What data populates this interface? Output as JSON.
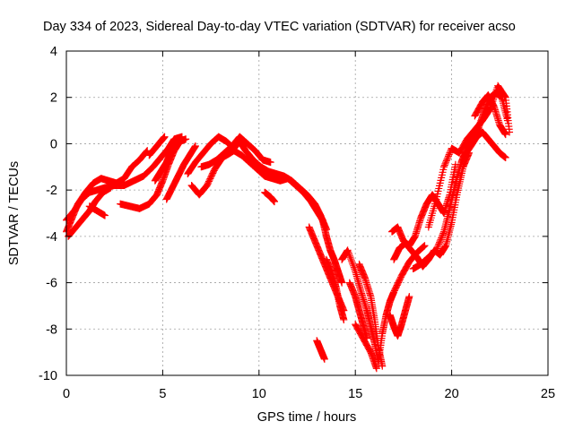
{
  "chart_data": {
    "type": "scatter",
    "title": "Day 334 of 2023, Sidereal Day-to-day VTEC variation (SDTVAR) for receiver acso",
    "xlabel": "GPS time / hours",
    "ylabel": "SDTVAR / TECUs",
    "xlim": [
      0,
      25
    ],
    "ylim": [
      -10,
      4
    ],
    "xticks": [
      0,
      5,
      10,
      15,
      20,
      25
    ],
    "yticks": [
      -10,
      -8,
      -6,
      -4,
      -2,
      0,
      2,
      4
    ],
    "grid": true,
    "marker": "+",
    "color": "#ff0000",
    "series": [
      {
        "name": "SDTVAR",
        "tracks": [
          [
            [
              0.0,
              -3.8
            ],
            [
              0.3,
              -3.2
            ],
            [
              0.6,
              -2.6
            ],
            [
              1.0,
              -2.1
            ],
            [
              1.4,
              -1.7
            ],
            [
              1.8,
              -1.5
            ],
            [
              2.2,
              -1.6
            ],
            [
              2.6,
              -1.7
            ],
            [
              3.0,
              -1.5
            ],
            [
              3.4,
              -1.0
            ],
            [
              3.8,
              -0.7
            ],
            [
              4.2,
              -0.3
            ]
          ],
          [
            [
              0.0,
              -3.3
            ],
            [
              0.4,
              -2.9
            ],
            [
              0.8,
              -2.4
            ],
            [
              1.2,
              -2.1
            ],
            [
              1.6,
              -2.0
            ],
            [
              2.0,
              -1.9
            ],
            [
              2.5,
              -1.8
            ],
            [
              3.0,
              -1.8
            ],
            [
              3.5,
              -1.6
            ],
            [
              4.0,
              -1.4
            ],
            [
              4.5,
              -1.0
            ],
            [
              4.9,
              -0.6
            ],
            [
              5.3,
              -0.2
            ],
            [
              5.6,
              0.2
            ],
            [
              6.0,
              0.3
            ]
          ],
          [
            [
              0.1,
              -4.0
            ],
            [
              0.5,
              -3.6
            ],
            [
              0.9,
              -3.2
            ],
            [
              1.2,
              -2.9
            ],
            [
              1.5,
              -2.5
            ],
            [
              1.9,
              -2.1
            ],
            [
              2.3,
              -1.9
            ]
          ],
          [
            [
              1.2,
              -2.7
            ],
            [
              1.6,
              -2.9
            ],
            [
              2.0,
              -3.1
            ]
          ],
          [
            [
              2.8,
              -2.6
            ],
            [
              3.3,
              -2.7
            ],
            [
              3.8,
              -2.8
            ],
            [
              4.3,
              -2.6
            ],
            [
              4.7,
              -2.2
            ],
            [
              5.0,
              -1.6
            ],
            [
              5.3,
              -0.9
            ],
            [
              5.6,
              -0.3
            ],
            [
              5.9,
              0.1
            ],
            [
              6.2,
              0.2
            ]
          ],
          [
            [
              4.6,
              -1.6
            ],
            [
              4.9,
              -1.2
            ],
            [
              5.2,
              -0.8
            ],
            [
              5.4,
              -0.4
            ],
            [
              5.7,
              0.0
            ]
          ],
          [
            [
              4.3,
              -0.5
            ],
            [
              4.6,
              -0.2
            ],
            [
              4.9,
              0.1
            ],
            [
              5.1,
              0.3
            ]
          ],
          [
            [
              5.2,
              -2.4
            ],
            [
              5.5,
              -1.9
            ],
            [
              5.8,
              -1.4
            ],
            [
              6.1,
              -0.9
            ],
            [
              6.4,
              -0.5
            ],
            [
              6.7,
              -0.1
            ]
          ],
          [
            [
              6.5,
              -1.8
            ],
            [
              6.9,
              -2.2
            ],
            [
              7.3,
              -1.8
            ],
            [
              7.7,
              -1.1
            ],
            [
              8.1,
              -0.6
            ],
            [
              8.5,
              -0.4
            ]
          ],
          [
            [
              6.3,
              -1.3
            ],
            [
              6.7,
              -0.8
            ],
            [
              7.1,
              -0.4
            ],
            [
              7.5,
              0.0
            ],
            [
              7.9,
              0.3
            ],
            [
              8.3,
              0.1
            ],
            [
              8.7,
              -0.2
            ],
            [
              9.0,
              0.1
            ],
            [
              9.3,
              -0.3
            ],
            [
              9.7,
              -0.7
            ],
            [
              10.1,
              -1.0
            ],
            [
              10.5,
              -1.2
            ],
            [
              10.9,
              -1.3
            ],
            [
              11.3,
              -1.4
            ],
            [
              11.7,
              -1.6
            ],
            [
              12.1,
              -1.9
            ],
            [
              12.5,
              -2.2
            ],
            [
              12.9,
              -2.6
            ],
            [
              13.2,
              -3.1
            ],
            [
              13.5,
              -3.7
            ]
          ],
          [
            [
              8.3,
              -0.5
            ],
            [
              8.7,
              -0.3
            ],
            [
              9.1,
              -0.5
            ],
            [
              9.5,
              -0.8
            ],
            [
              9.9,
              -1.1
            ],
            [
              10.3,
              -1.4
            ],
            [
              10.7,
              -1.5
            ],
            [
              11.1,
              -1.6
            ],
            [
              11.5,
              -1.5
            ],
            [
              11.9,
              -1.8
            ],
            [
              12.3,
              -2.1
            ],
            [
              12.7,
              -2.5
            ],
            [
              13.0,
              -2.9
            ],
            [
              13.3,
              -3.3
            ],
            [
              13.5,
              -4.0
            ],
            [
              13.7,
              -4.6
            ],
            [
              13.9,
              -5.0
            ],
            [
              14.1,
              -5.5
            ],
            [
              14.3,
              -6.0
            ]
          ],
          [
            [
              7.0,
              -1.0
            ],
            [
              7.4,
              -0.9
            ],
            [
              7.8,
              -0.7
            ],
            [
              8.2,
              -0.4
            ],
            [
              8.6,
              -0.1
            ],
            [
              9.0,
              0.3
            ],
            [
              9.4,
              0.0
            ],
            [
              9.8,
              -0.3
            ],
            [
              10.2,
              -0.7
            ],
            [
              10.6,
              -0.8
            ]
          ],
          [
            [
              10.3,
              -2.1
            ],
            [
              10.6,
              -2.3
            ],
            [
              10.8,
              -2.5
            ]
          ],
          [
            [
              12.6,
              -3.6
            ],
            [
              12.9,
              -4.2
            ],
            [
              13.2,
              -4.8
            ],
            [
              13.5,
              -5.4
            ],
            [
              13.8,
              -6.0
            ],
            [
              14.1,
              -6.6
            ],
            [
              14.4,
              -7.2
            ]
          ],
          [
            [
              13.5,
              -5.0
            ],
            [
              13.8,
              -5.6
            ],
            [
              14.0,
              -6.2
            ],
            [
              14.2,
              -7.0
            ],
            [
              14.4,
              -7.6
            ]
          ],
          [
            [
              13.0,
              -8.5
            ],
            [
              13.2,
              -8.9
            ],
            [
              13.4,
              -9.3
            ]
          ],
          [
            [
              14.3,
              -5.0
            ],
            [
              14.6,
              -4.6
            ],
            [
              15.0,
              -5.5
            ],
            [
              15.3,
              -6.4
            ],
            [
              15.6,
              -7.2
            ],
            [
              15.8,
              -7.9
            ],
            [
              16.0,
              -8.6
            ],
            [
              16.2,
              -9.4
            ],
            [
              16.4,
              -8.2
            ],
            [
              16.6,
              -7.4
            ],
            [
              16.8,
              -6.8
            ],
            [
              17.0,
              -6.4
            ],
            [
              17.4,
              -5.7
            ],
            [
              17.8,
              -5.1
            ],
            [
              18.2,
              -4.7
            ],
            [
              18.6,
              -4.4
            ]
          ],
          [
            [
              14.7,
              -6.0
            ],
            [
              15.0,
              -6.6
            ],
            [
              15.2,
              -7.2
            ],
            [
              15.4,
              -7.8
            ],
            [
              15.6,
              -8.4
            ]
          ],
          [
            [
              15.2,
              -5.2
            ],
            [
              15.5,
              -5.8
            ],
            [
              15.8,
              -6.6
            ],
            [
              16.0,
              -7.6
            ],
            [
              16.2,
              -8.8
            ],
            [
              16.4,
              -9.6
            ]
          ],
          [
            [
              15.0,
              -7.8
            ],
            [
              15.4,
              -8.4
            ],
            [
              15.8,
              -9.0
            ],
            [
              16.1,
              -9.7
            ]
          ],
          [
            [
              16.8,
              -7.4
            ],
            [
              17.0,
              -7.9
            ],
            [
              17.2,
              -8.3
            ],
            [
              17.4,
              -7.8
            ],
            [
              17.6,
              -7.2
            ],
            [
              17.8,
              -6.6
            ]
          ],
          [
            [
              17.0,
              -5.0
            ],
            [
              17.3,
              -4.5
            ],
            [
              17.6,
              -4.3
            ],
            [
              17.9,
              -4.6
            ],
            [
              18.2,
              -4.9
            ],
            [
              18.5,
              -5.3
            ],
            [
              18.8,
              -5.0
            ],
            [
              19.1,
              -4.6
            ],
            [
              19.4,
              -4.8
            ],
            [
              19.7,
              -4.4
            ],
            [
              20.0,
              -3.4
            ],
            [
              20.3,
              -2.1
            ],
            [
              20.6,
              -1.0
            ],
            [
              20.9,
              -0.4
            ]
          ],
          [
            [
              16.9,
              -3.8
            ],
            [
              17.2,
              -3.6
            ],
            [
              17.5,
              -4.2
            ],
            [
              17.8,
              -4.4
            ],
            [
              18.1,
              -4.0
            ],
            [
              18.4,
              -3.2
            ],
            [
              18.7,
              -2.6
            ],
            [
              19.0,
              -2.2
            ],
            [
              19.3,
              -2.6
            ],
            [
              19.6,
              -3.0
            ],
            [
              19.9,
              -2.2
            ],
            [
              20.2,
              -0.9
            ]
          ],
          [
            [
              18.0,
              -5.4
            ],
            [
              18.4,
              -5.2
            ],
            [
              18.8,
              -4.9
            ],
            [
              19.2,
              -4.6
            ],
            [
              19.6,
              -3.8
            ],
            [
              19.9,
              -2.8
            ],
            [
              20.2,
              -1.7
            ],
            [
              20.5,
              -0.8
            ],
            [
              20.8,
              -0.2
            ],
            [
              21.1,
              0.2
            ],
            [
              21.4,
              0.7
            ],
            [
              21.7,
              1.4
            ],
            [
              22.0,
              2.0
            ],
            [
              22.3,
              2.2
            ],
            [
              22.6,
              2.0
            ],
            [
              22.9,
              1.0
            ]
          ],
          [
            [
              18.8,
              -3.6
            ],
            [
              19.2,
              -2.4
            ],
            [
              19.6,
              -1.0
            ],
            [
              20.0,
              -0.2
            ],
            [
              20.4,
              -0.4
            ],
            [
              20.8,
              0.2
            ],
            [
              21.2,
              0.6
            ],
            [
              21.6,
              1.0
            ],
            [
              22.0,
              1.5
            ],
            [
              22.4,
              2.5
            ],
            [
              22.8,
              2.0
            ],
            [
              23.0,
              0.5
            ]
          ],
          [
            [
              20.6,
              -0.6
            ],
            [
              21.0,
              -0.1
            ],
            [
              21.3,
              0.3
            ],
            [
              21.6,
              0.5
            ],
            [
              21.9,
              0.2
            ],
            [
              22.2,
              -0.1
            ],
            [
              22.5,
              -0.4
            ],
            [
              22.8,
              -0.6
            ]
          ],
          [
            [
              21.2,
              1.2
            ],
            [
              21.6,
              1.8
            ],
            [
              21.9,
              2.1
            ],
            [
              22.2,
              1.6
            ],
            [
              22.5,
              0.8
            ],
            [
              22.8,
              0.4
            ]
          ]
        ]
      }
    ]
  }
}
